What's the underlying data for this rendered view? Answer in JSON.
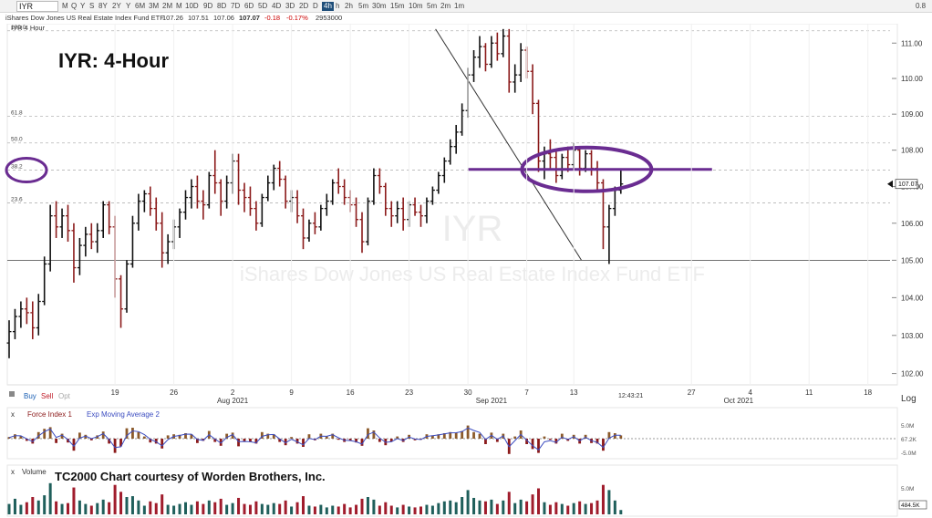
{
  "toolbar": {
    "symbol": "IYR",
    "timeframes": [
      "M",
      "Q",
      "Y",
      "S",
      "8Y",
      "2Y",
      "Y",
      "6M",
      "3M",
      "2M",
      "M",
      "10D",
      "9D",
      "8D",
      "7D",
      "6D",
      "5D",
      "4D",
      "3D",
      "2D",
      "D",
      "4h",
      "h",
      "2h",
      "5m",
      "30m",
      "15m",
      "10m",
      "5m",
      "2m",
      "1m"
    ],
    "active_timeframe": "4h",
    "right_value": "0.8"
  },
  "infobar": {
    "name": "iShares Dow Jones US Real Estate Index Fund ETF",
    "open": "107.26",
    "high": "107.51",
    "low": "107.06",
    "close": "107.07",
    "change": "-0.18",
    "change_pct": "-0.17%",
    "volume": "2953000"
  },
  "price_pane": {
    "header": "IYR 4 Hour",
    "watermark_symbol": "IYR",
    "watermark_name": "iShares Dow Jones US Real Estate Index Fund ETF",
    "overlay_title": "IYR:  4-Hour",
    "last_price_label": "107.07",
    "time_label": "12:43:21",
    "scale_label": "Log"
  },
  "force_pane": {
    "header_x": "x",
    "indicator1": "Force Index 1",
    "indicator2": "Exp Moving Average 2",
    "scale_top": "5.0M",
    "scale_mid": "67.2K",
    "scale_bot": "-5.0M"
  },
  "volume_pane": {
    "header_x": "x",
    "header": "Volume",
    "credit": "TC2000 Chart courtesy of Worden Brothers, Inc.",
    "scale_top": "5.0M",
    "scale_last": "484.5K"
  },
  "trade": {
    "buy": "Buy",
    "sell": "Sell",
    "opt": "Opt"
  },
  "colors": {
    "up": "#111111",
    "down": "#8b1a1a",
    "annotation": "#6a2c91",
    "volume_up": "#1f5f5b",
    "volume_down": "#a01c2c",
    "force_up": "#8b5a2b",
    "force_line": "#3b4cc0"
  },
  "chart_data": {
    "type": "ohlc",
    "title": "IYR:  4-Hour",
    "y_scale": "log",
    "ylim": [
      101.8,
      111.5
    ],
    "y_ticks": [
      102.0,
      103.0,
      104.0,
      105.0,
      106.0,
      107.0,
      108.0,
      109.0,
      110.0,
      111.0
    ],
    "fib_levels": [
      {
        "label": "100.0",
        "value": 111.35
      },
      {
        "label": "61.8",
        "value": 108.94
      },
      {
        "label": "50.0",
        "value": 108.2
      },
      {
        "label": "38.2",
        "value": 107.45
      },
      {
        "label": "23.6",
        "value": 106.55
      },
      {
        "label": "",
        "value": 105.0
      }
    ],
    "x_ticks": [
      {
        "label": "19",
        "bar": 18
      },
      {
        "label": "26",
        "bar": 28
      },
      {
        "label": "2",
        "bar": 38
      },
      {
        "label": "9",
        "bar": 48
      },
      {
        "label": "16",
        "bar": 58
      },
      {
        "label": "23",
        "bar": 68
      },
      {
        "label": "30",
        "bar": 78
      },
      {
        "label": "7",
        "bar": 88
      },
      {
        "label": "13",
        "bar": 96
      },
      {
        "label": "27",
        "bar": 116
      },
      {
        "label": "4",
        "bar": 126
      },
      {
        "label": "11",
        "bar": 136
      },
      {
        "label": "18",
        "bar": 146
      }
    ],
    "month_labels": [
      {
        "label": "Aug 2021",
        "bar": 38
      },
      {
        "label": "Sep 2021",
        "bar": 82
      },
      {
        "label": "Oct 2021",
        "bar": 124
      }
    ],
    "bars": [
      [
        102.8,
        103.4,
        102.4,
        103.1
      ],
      [
        103.1,
        103.7,
        102.9,
        103.5
      ],
      [
        103.5,
        103.9,
        103.2,
        103.7
      ],
      [
        103.7,
        104.0,
        103.3,
        103.6
      ],
      [
        103.6,
        103.9,
        102.9,
        103.2
      ],
      [
        103.2,
        104.1,
        103.0,
        103.9
      ],
      [
        103.9,
        105.1,
        103.8,
        104.9
      ],
      [
        104.9,
        106.5,
        104.7,
        106.2
      ],
      [
        106.2,
        106.6,
        105.6,
        105.9
      ],
      [
        105.9,
        106.4,
        105.6,
        106.2
      ],
      [
        106.2,
        106.5,
        105.5,
        105.8
      ],
      [
        105.8,
        106.0,
        104.4,
        104.8
      ],
      [
        104.8,
        105.6,
        104.6,
        105.4
      ],
      [
        105.4,
        105.9,
        105.1,
        105.7
      ],
      [
        105.7,
        106.0,
        105.3,
        105.5
      ],
      [
        105.5,
        106.0,
        105.2,
        105.8
      ],
      [
        105.8,
        106.6,
        105.6,
        106.5
      ],
      [
        106.5,
        106.6,
        105.7,
        105.9
      ],
      [
        105.9,
        106.2,
        104.0,
        104.5
      ],
      [
        104.5,
        104.6,
        103.2,
        103.7
      ],
      [
        103.7,
        105.0,
        103.6,
        104.9
      ],
      [
        104.9,
        106.2,
        104.8,
        106.0
      ],
      [
        106.0,
        106.8,
        105.8,
        106.6
      ],
      [
        106.6,
        106.9,
        106.3,
        106.8
      ],
      [
        106.8,
        107.0,
        106.2,
        106.4
      ],
      [
        106.4,
        106.7,
        105.8,
        106.0
      ],
      [
        106.0,
        106.3,
        104.8,
        105.2
      ],
      [
        105.2,
        105.7,
        104.9,
        105.5
      ],
      [
        105.5,
        106.1,
        105.3,
        105.9
      ],
      [
        105.9,
        106.4,
        105.6,
        106.3
      ],
      [
        106.3,
        106.9,
        106.1,
        106.7
      ],
      [
        106.7,
        107.2,
        106.4,
        107.0
      ],
      [
        107.0,
        107.3,
        106.4,
        106.6
      ],
      [
        106.6,
        106.9,
        106.1,
        106.5
      ],
      [
        106.5,
        107.4,
        106.4,
        107.3
      ],
      [
        107.3,
        108.0,
        106.8,
        107.1
      ],
      [
        107.1,
        107.2,
        106.2,
        106.6
      ],
      [
        106.6,
        107.3,
        106.4,
        107.1
      ],
      [
        107.1,
        107.9,
        106.8,
        107.7
      ],
      [
        107.7,
        107.9,
        106.5,
        106.9
      ],
      [
        106.9,
        107.1,
        106.3,
        106.7
      ],
      [
        106.7,
        107.0,
        106.2,
        106.4
      ],
      [
        106.4,
        106.6,
        105.8,
        106.0
      ],
      [
        106.0,
        106.8,
        105.9,
        106.7
      ],
      [
        106.7,
        107.3,
        106.6,
        107.1
      ],
      [
        107.1,
        107.6,
        106.9,
        107.5
      ],
      [
        107.5,
        107.7,
        107.0,
        107.2
      ],
      [
        107.2,
        107.3,
        106.4,
        106.6
      ],
      [
        106.6,
        106.9,
        106.3,
        106.7
      ],
      [
        106.7,
        106.9,
        106.0,
        106.2
      ],
      [
        106.2,
        106.4,
        105.3,
        105.6
      ],
      [
        105.6,
        106.1,
        105.5,
        106.0
      ],
      [
        106.0,
        106.3,
        105.7,
        105.9
      ],
      [
        105.9,
        106.5,
        105.8,
        106.4
      ],
      [
        106.4,
        106.8,
        106.2,
        106.6
      ],
      [
        106.6,
        107.2,
        106.5,
        107.1
      ],
      [
        107.1,
        107.5,
        106.8,
        107.0
      ],
      [
        107.0,
        107.2,
        106.5,
        106.7
      ],
      [
        106.7,
        106.9,
        106.3,
        106.5
      ],
      [
        106.5,
        106.7,
        105.9,
        106.1
      ],
      [
        106.1,
        106.3,
        105.2,
        105.5
      ],
      [
        105.5,
        106.7,
        105.4,
        106.6
      ],
      [
        106.6,
        107.5,
        106.5,
        107.3
      ],
      [
        107.3,
        107.5,
        106.8,
        107.0
      ],
      [
        107.0,
        107.1,
        106.2,
        106.4
      ],
      [
        106.4,
        106.6,
        105.9,
        106.2
      ],
      [
        106.2,
        106.6,
        106.0,
        106.4
      ],
      [
        106.4,
        106.7,
        105.8,
        106.1
      ],
      [
        106.1,
        106.6,
        105.9,
        106.5
      ],
      [
        106.5,
        106.7,
        106.2,
        106.3
      ],
      [
        106.3,
        106.5,
        105.9,
        106.2
      ],
      [
        106.2,
        106.7,
        106.0,
        106.6
      ],
      [
        106.6,
        107.0,
        106.5,
        106.9
      ],
      [
        106.9,
        107.4,
        106.8,
        107.3
      ],
      [
        107.3,
        107.8,
        107.1,
        107.7
      ],
      [
        107.7,
        108.3,
        107.6,
        108.1
      ],
      [
        108.1,
        108.7,
        107.9,
        108.5
      ],
      [
        108.5,
        109.3,
        108.4,
        109.1
      ],
      [
        109.1,
        110.3,
        108.9,
        110.1
      ],
      [
        110.1,
        110.8,
        109.9,
        110.6
      ],
      [
        110.6,
        111.2,
        110.3,
        110.9
      ],
      [
        110.9,
        111.0,
        110.2,
        110.4
      ],
      [
        110.4,
        111.2,
        110.3,
        111.0
      ],
      [
        111.0,
        111.3,
        110.5,
        110.7
      ],
      [
        110.7,
        111.4,
        110.6,
        111.2
      ],
      [
        111.2,
        111.4,
        109.6,
        109.9
      ],
      [
        109.9,
        110.4,
        109.6,
        110.1
      ],
      [
        110.1,
        111.0,
        109.9,
        110.8
      ],
      [
        110.8,
        110.9,
        110.0,
        110.2
      ],
      [
        110.2,
        110.4,
        109.0,
        109.3
      ],
      [
        109.3,
        109.4,
        107.4,
        107.7
      ],
      [
        107.7,
        108.1,
        107.2,
        107.9
      ],
      [
        107.9,
        108.3,
        107.5,
        107.8
      ],
      [
        107.8,
        108.0,
        107.1,
        107.3
      ],
      [
        107.3,
        107.9,
        107.2,
        107.8
      ],
      [
        107.8,
        108.1,
        107.4,
        107.6
      ],
      [
        107.6,
        108.2,
        107.5,
        108.0
      ],
      [
        108.0,
        108.1,
        107.3,
        107.5
      ],
      [
        107.5,
        108.0,
        107.4,
        107.9
      ],
      [
        107.9,
        108.0,
        107.3,
        107.5
      ],
      [
        107.5,
        107.7,
        106.9,
        107.1
      ],
      [
        107.1,
        107.2,
        105.3,
        105.9
      ],
      [
        105.9,
        106.5,
        104.9,
        106.4
      ],
      [
        106.4,
        107.0,
        106.2,
        106.9
      ],
      [
        106.9,
        107.5,
        106.8,
        107.07
      ]
    ],
    "force_index": [
      0.3,
      0.8,
      0.5,
      -0.4,
      -0.9,
      1.2,
      1.8,
      2.1,
      -0.8,
      0.9,
      -0.7,
      -2.2,
      1.1,
      0.7,
      -0.3,
      0.6,
      1.3,
      -0.9,
      -2.6,
      -1.4,
      1.9,
      2.0,
      1.2,
      0.4,
      -0.7,
      -0.9,
      -1.8,
      0.6,
      0.8,
      0.7,
      1.0,
      0.8,
      -0.8,
      -0.4,
      1.4,
      -0.6,
      -1.3,
      0.9,
      1.1,
      -1.4,
      -0.5,
      -0.6,
      -0.9,
      1.2,
      0.9,
      0.8,
      -0.6,
      -1.2,
      0.3,
      -0.9,
      -1.5,
      0.8,
      -0.3,
      0.9,
      0.4,
      0.9,
      -0.2,
      -0.6,
      -0.4,
      -0.7,
      -1.3,
      1.9,
      1.5,
      -0.6,
      -1.2,
      -0.5,
      0.4,
      -0.6,
      0.7,
      -0.3,
      -0.2,
      0.8,
      0.6,
      0.8,
      1.0,
      1.2,
      1.1,
      1.4,
      2.4,
      1.2,
      0.9,
      -1.0,
      1.1,
      -0.6,
      0.9,
      -2.8,
      0.4,
      1.5,
      -1.0,
      -1.9,
      -2.6,
      0.4,
      -0.2,
      -0.9,
      0.9,
      -0.4,
      0.7,
      -0.9,
      0.7,
      -0.8,
      -0.9,
      -2.2,
      1.2,
      1.0,
      0.6
    ],
    "volume": [
      1.2,
      1.8,
      1.1,
      1.4,
      2.0,
      1.6,
      2.2,
      3.6,
      1.5,
      1.2,
      1.3,
      3.1,
      1.6,
      1.2,
      1.0,
      1.3,
      1.7,
      1.4,
      3.4,
      2.6,
      2.0,
      2.1,
      1.6,
      1.0,
      1.5,
      1.3,
      2.3,
      1.1,
      1.0,
      1.2,
      1.4,
      1.1,
      1.5,
      1.2,
      1.6,
      1.4,
      1.8,
      1.1,
      1.3,
      1.9,
      1.2,
      1.1,
      1.5,
      1.2,
      1.1,
      1.3,
      1.2,
      1.6,
      0.9,
      1.4,
      2.1,
      1.0,
      0.9,
      1.1,
      0.8,
      1.0,
      0.9,
      1.2,
      0.8,
      1.1,
      1.8,
      2.0,
      1.7,
      1.0,
      1.4,
      1.0,
      0.8,
      1.1,
      0.9,
      0.8,
      0.9,
      1.1,
      1.0,
      1.3,
      1.5,
      1.6,
      1.4,
      2.0,
      2.8,
      1.9,
      1.6,
      1.5,
      1.7,
      1.2,
      1.6,
      2.6,
      1.3,
      1.7,
      1.5,
      2.3,
      3.0,
      1.4,
      1.1,
      1.4,
      1.2,
      1.0,
      1.3,
      1.5,
      1.2,
      1.3,
      1.6,
      3.4,
      2.8,
      1.6,
      0.5
    ]
  }
}
